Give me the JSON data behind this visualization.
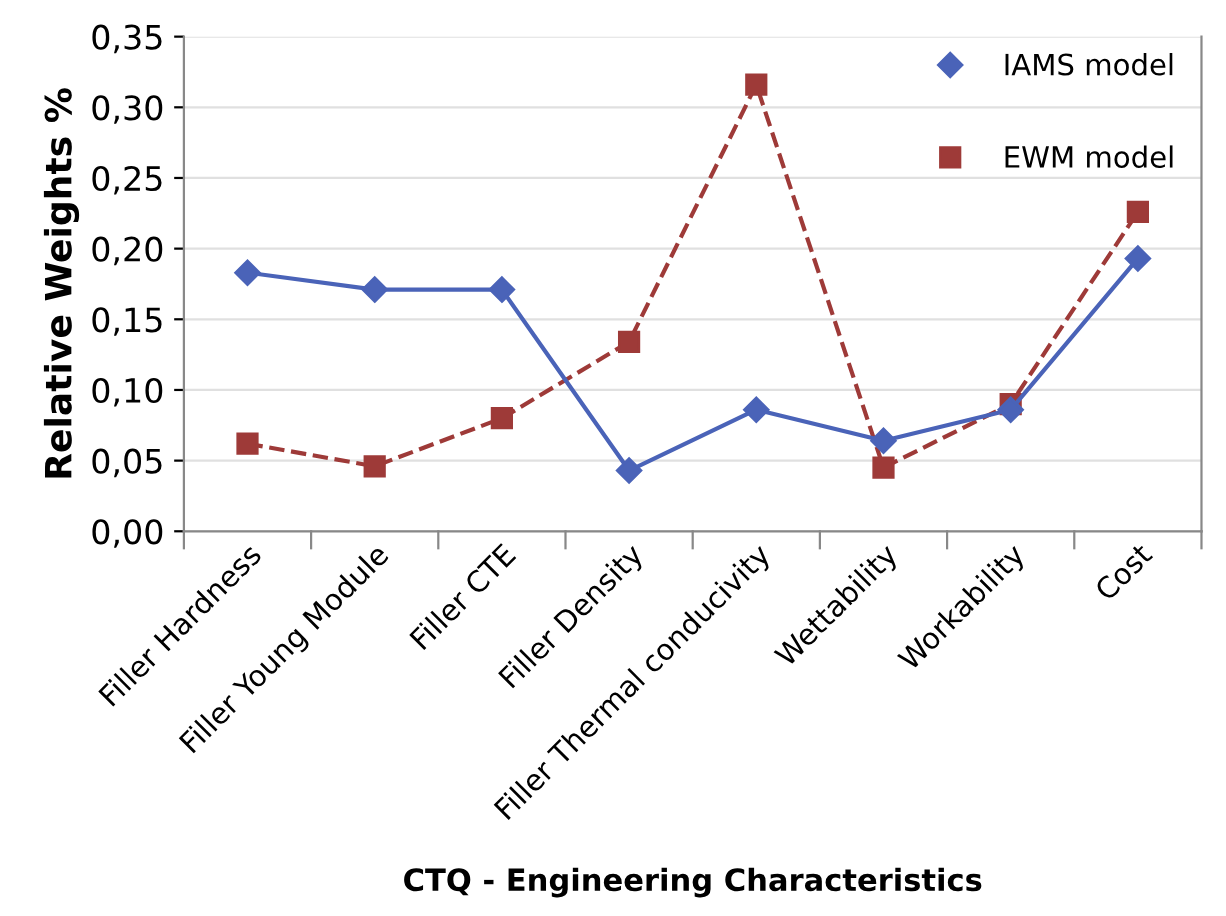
{
  "chart_data": {
    "type": "line",
    "xlabel": "CTQ - Engineering Characteristics",
    "ylabel": "Relative Weights %",
    "categories": [
      "Filler Hardness",
      "Filler Young Module",
      "Filler CTE",
      "Filler Density",
      "Filler Thermal conducivity",
      "Wettability",
      "Workability",
      "Cost"
    ],
    "series": [
      {
        "name": "IAMS model",
        "color": "#4a63b8",
        "marker": "diamond",
        "line_style": "solid",
        "values": [
          0.183,
          0.171,
          0.171,
          0.043,
          0.086,
          0.064,
          0.086,
          0.193
        ]
      },
      {
        "name": "EWM model",
        "color": "#9e3a38",
        "marker": "square",
        "line_style": "dashed",
        "values": [
          0.062,
          0.046,
          0.08,
          0.134,
          0.316,
          0.045,
          0.09,
          0.226
        ]
      }
    ],
    "ylim": [
      0,
      0.35
    ],
    "yticks": [
      {
        "value": 0,
        "label": "0,00"
      },
      {
        "value": 0.05,
        "label": "0,05"
      },
      {
        "value": 0.1,
        "label": "0,10"
      },
      {
        "value": 0.15,
        "label": "0,15"
      },
      {
        "value": 0.2,
        "label": "0,20"
      },
      {
        "value": 0.25,
        "label": "0,25"
      },
      {
        "value": 0.3,
        "label": "0,30"
      },
      {
        "value": 0.35,
        "label": "0,35"
      }
    ],
    "grid": "y",
    "legend": "top right"
  }
}
